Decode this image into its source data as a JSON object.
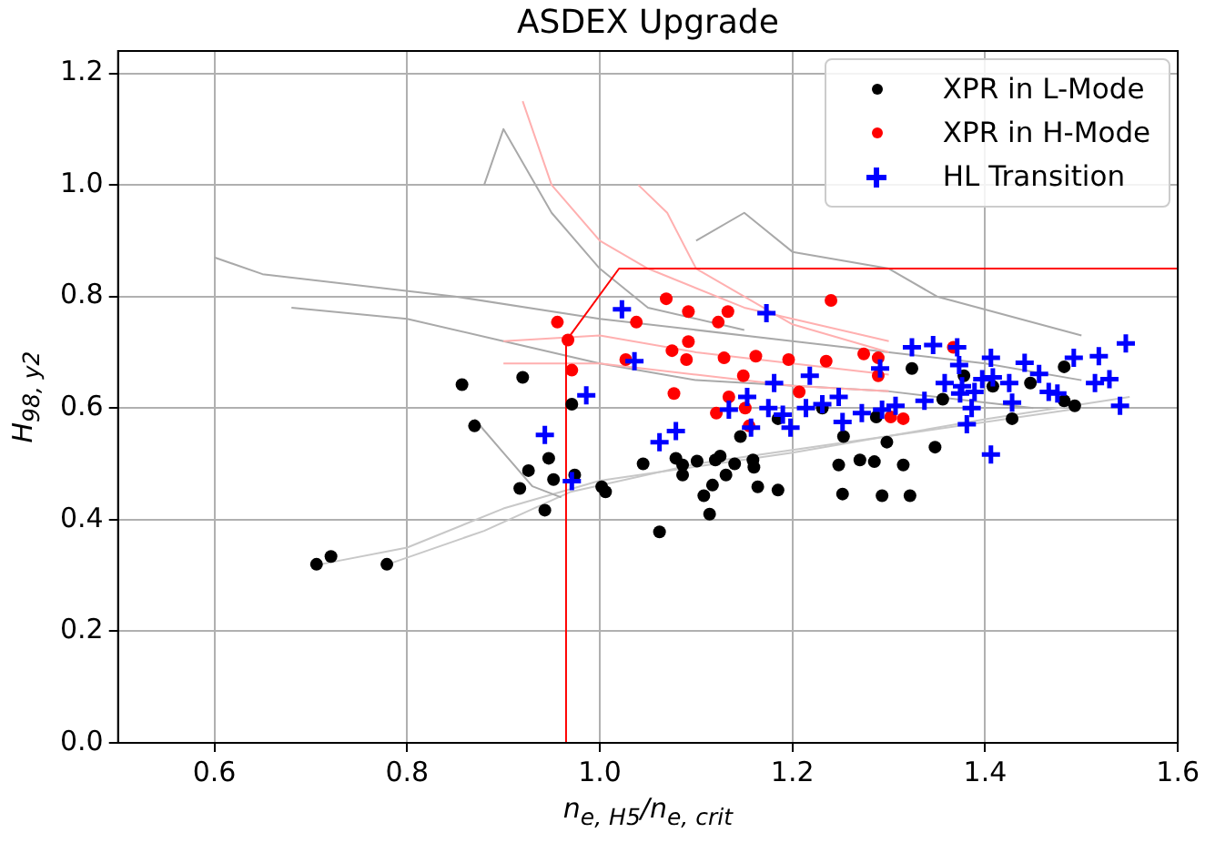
{
  "chart_data": {
    "type": "scatter",
    "title": "ASDEX Upgrade",
    "xlabel": "n$_{e, H5}$/n$_{e, crit}$",
    "ylabel": "H$_{98, y2}$",
    "xlim": [
      0.5,
      1.6
    ],
    "xticks": [
      0.6,
      0.8,
      {
        "value": 1,
        "label": "1.0"
      },
      1.2,
      1.4,
      1.6
    ],
    "ylim": [
      0,
      1.24
    ],
    "yticks": [
      {
        "value": 0,
        "label": "0.0"
      },
      0.2,
      0.4,
      0.6,
      0.8,
      {
        "value": 1,
        "label": "1.0"
      },
      1.2
    ],
    "grid": true,
    "legend": "top right",
    "series": [
      {
        "type": "line",
        "color": "#a9a9a9",
        "marker": "none",
        "x": [
          0.6,
          0.65,
          0.75,
          0.85,
          1.0,
          1.2,
          1.4,
          1.5
        ],
        "values": [
          0.87,
          0.84,
          0.82,
          0.8,
          0.76,
          0.72,
          0.68,
          0.65
        ]
      },
      {
        "type": "line",
        "color": "#a9a9a9",
        "marker": "none",
        "x": [
          0.68,
          0.8,
          0.9,
          1.0,
          1.1,
          1.3,
          1.45
        ],
        "values": [
          0.78,
          0.76,
          0.72,
          0.68,
          0.65,
          0.63,
          0.6
        ]
      },
      {
        "type": "line",
        "color": "#c8c8c8",
        "marker": "none",
        "x": [
          0.71,
          0.8,
          0.9,
          1.0,
          1.2,
          1.4,
          1.55
        ],
        "values": [
          0.32,
          0.35,
          0.42,
          0.47,
          0.52,
          0.58,
          0.62
        ]
      },
      {
        "type": "line",
        "color": "#c8c8c8",
        "marker": "none",
        "x": [
          0.78,
          0.88,
          0.97,
          1.1,
          1.3,
          1.5
        ],
        "values": [
          0.32,
          0.38,
          0.45,
          0.5,
          0.55,
          0.6
        ]
      },
      {
        "type": "line",
        "color": "#a9a9a9",
        "marker": "none",
        "x": [
          0.88,
          0.9,
          0.95,
          1.0,
          1.05,
          1.15
        ],
        "values": [
          1.0,
          1.1,
          0.95,
          0.85,
          0.78,
          0.74
        ]
      },
      {
        "type": "line",
        "color": "#a9a9a9",
        "marker": "none",
        "x": [
          1.1,
          1.15,
          1.2,
          1.3,
          1.35,
          1.5
        ],
        "values": [
          0.9,
          0.95,
          0.88,
          0.85,
          0.8,
          0.73
        ]
      },
      {
        "type": "line",
        "color": "#a9a9a9",
        "marker": "none",
        "x": [
          0.87,
          0.9,
          0.93,
          0.96
        ],
        "values": [
          0.58,
          0.52,
          0.46,
          0.44
        ]
      },
      {
        "type": "line",
        "color": "#ffb0b0",
        "marker": "none",
        "x": [
          0.92,
          0.95,
          1.0,
          1.05,
          1.15,
          1.3
        ],
        "values": [
          1.15,
          1.0,
          0.9,
          0.85,
          0.78,
          0.72
        ]
      },
      {
        "type": "line",
        "color": "#ffb0b0",
        "marker": "none",
        "x": [
          1.04,
          1.07,
          1.1,
          1.2,
          1.3
        ],
        "values": [
          1.0,
          0.95,
          0.85,
          0.75,
          0.7
        ]
      },
      {
        "type": "line",
        "color": "#ffb0b0",
        "marker": "none",
        "x": [
          0.9,
          1.0,
          1.1,
          1.2,
          1.3
        ],
        "values": [
          0.72,
          0.73,
          0.7,
          0.68,
          0.66
        ]
      },
      {
        "type": "line",
        "color": "#ffb0b0",
        "marker": "none",
        "x": [
          0.9,
          1.0,
          1.1,
          1.2,
          1.3
        ],
        "values": [
          0.68,
          0.68,
          0.66,
          0.64,
          0.63
        ]
      },
      {
        "type": "line",
        "color": "#ff0000",
        "marker": "none",
        "x": [
          0.965,
          0.965,
          1.02,
          1.6
        ],
        "values": [
          0.0,
          0.72,
          0.85,
          0.85
        ]
      },
      {
        "name": "XPR in L-Mode",
        "color": "#000000",
        "marker": "circle",
        "x": [
          0.706,
          0.721,
          0.779,
          0.857,
          0.92,
          0.87,
          0.947,
          0.926,
          0.952,
          0.974,
          0.917,
          0.943,
          0.971,
          1.002,
          1.006,
          1.045,
          1.062,
          1.079,
          1.086,
          1.086,
          1.101,
          1.12,
          1.125,
          1.14,
          1.159,
          1.16,
          1.131,
          1.108,
          1.117,
          1.114,
          1.164,
          1.185,
          1.146,
          1.185,
          1.324,
          1.378,
          1.408,
          1.447,
          1.482,
          1.482,
          1.493,
          1.356,
          1.428,
          1.287,
          1.231,
          1.253,
          1.298,
          1.348,
          1.248,
          1.27,
          1.285,
          1.315,
          1.252,
          1.293,
          1.322
        ],
        "values": [
          0.32,
          0.334,
          0.32,
          0.642,
          0.655,
          0.568,
          0.51,
          0.488,
          0.472,
          0.48,
          0.456,
          0.417,
          0.607,
          0.459,
          0.45,
          0.5,
          0.378,
          0.51,
          0.498,
          0.48,
          0.505,
          0.507,
          0.514,
          0.5,
          0.507,
          0.494,
          0.48,
          0.443,
          0.462,
          0.41,
          0.459,
          0.453,
          0.549,
          0.581,
          0.671,
          0.658,
          0.639,
          0.645,
          0.674,
          0.613,
          0.604,
          0.616,
          0.581,
          0.584,
          0.6,
          0.549,
          0.539,
          0.53,
          0.498,
          0.507,
          0.504,
          0.498,
          0.446,
          0.443,
          0.443
        ]
      },
      {
        "name": "XPR in H-Mode",
        "color": "#ff0000",
        "marker": "circle",
        "x": [
          0.956,
          0.967,
          0.971,
          1.038,
          1.027,
          1.069,
          1.092,
          1.133,
          1.123,
          1.075,
          1.092,
          1.09,
          1.129,
          1.162,
          1.196,
          1.149,
          1.077,
          1.134,
          1.121,
          1.151,
          1.155,
          1.207,
          1.24,
          1.235,
          1.274,
          1.289,
          1.289,
          1.367,
          1.302,
          1.315
        ],
        "values": [
          0.754,
          0.722,
          0.668,
          0.754,
          0.687,
          0.796,
          0.773,
          0.773,
          0.754,
          0.703,
          0.719,
          0.687,
          0.69,
          0.693,
          0.687,
          0.658,
          0.626,
          0.62,
          0.591,
          0.6,
          0.568,
          0.629,
          0.793,
          0.684,
          0.697,
          0.69,
          0.658,
          0.709,
          0.584,
          0.581
        ]
      },
      {
        "name": "HL Transition",
        "color": "#0000ff",
        "marker": "cross",
        "x": [
          1.023,
          1.036,
          0.986,
          0.943,
          0.971,
          1.173,
          1.181,
          1.218,
          1.153,
          1.134,
          1.175,
          1.19,
          1.198,
          1.214,
          1.157,
          1.079,
          1.062,
          1.324,
          1.346,
          1.371,
          1.373,
          1.406,
          1.441,
          1.492,
          1.518,
          1.546,
          1.291,
          1.358,
          1.376,
          1.397,
          1.408,
          1.425,
          1.456,
          1.466,
          1.475,
          1.514,
          1.529,
          1.54,
          1.374,
          1.389,
          1.386,
          1.381,
          1.428,
          1.337,
          1.307,
          1.293,
          1.272,
          1.248,
          1.231,
          1.252,
          1.406
        ],
        "values": [
          0.777,
          0.684,
          0.623,
          0.552,
          0.469,
          0.77,
          0.645,
          0.658,
          0.62,
          0.597,
          0.6,
          0.588,
          0.565,
          0.6,
          0.565,
          0.559,
          0.539,
          0.709,
          0.713,
          0.709,
          0.677,
          0.69,
          0.681,
          0.69,
          0.693,
          0.716,
          0.671,
          0.645,
          0.639,
          0.652,
          0.655,
          0.645,
          0.661,
          0.629,
          0.626,
          0.645,
          0.652,
          0.604,
          0.626,
          0.629,
          0.6,
          0.571,
          0.61,
          0.613,
          0.604,
          0.597,
          0.591,
          0.62,
          0.607,
          0.575,
          0.517
        ]
      }
    ]
  }
}
